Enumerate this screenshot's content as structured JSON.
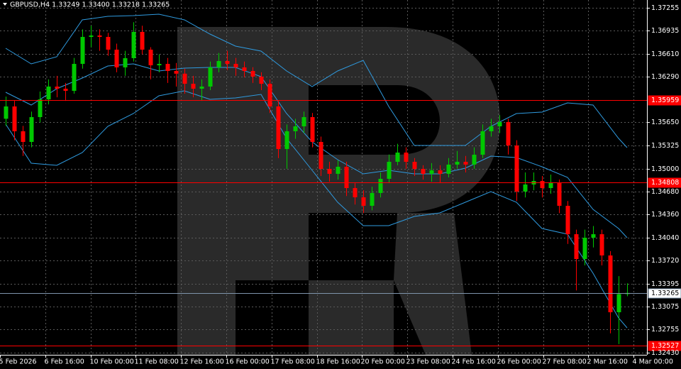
{
  "chart_data": {
    "type": "candlestick",
    "title": "GBPUSD,H4  1.33249 1.33400 1.33218 1.33265",
    "ylim": [
      1.324,
      1.3736
    ],
    "yticks": [
      1.37255,
      1.36935,
      {
        "value": 1.3661,
        "label": "1.36610"
      },
      {
        "value": 1.3629,
        "label": "1.36290"
      },
      {
        "value": 1.3565,
        "label": "1.35650"
      },
      1.35325,
      {
        "value": 1.35,
        "label": "1.35000"
      },
      {
        "value": 1.3468,
        "label": "1.34680"
      },
      {
        "value": 1.3436,
        "label": "1.34360"
      },
      {
        "value": 1.3404,
        "label": "1.34040"
      },
      {
        "value": 1.3372,
        "label": "1.33720"
      },
      1.33395,
      1.33075,
      1.32755,
      {
        "value": 1.3243,
        "label": "1.32430"
      }
    ],
    "x_labels": [
      "5 Feb 2026",
      "6 Feb 16:00",
      "10 Feb 00:00",
      "11 Feb 08:00",
      "12 Feb 16:00",
      "16 Feb 00:00",
      "17 Feb 08:00",
      "18 Feb 16:00",
      "20 Feb 00:00",
      "23 Feb 08:00",
      "24 Feb 16:00",
      "26 Feb 00:00",
      "27 Feb 08:00",
      "2 Mar 16:00",
      "4 Mar 00:00"
    ],
    "grid": true,
    "up_color": "#00c800",
    "down_color": "#ff0000",
    "ohlc": [
      [
        1.357,
        1.3601,
        1.356,
        1.35872
      ],
      [
        1.35872,
        1.3595,
        1.354,
        1.35525
      ],
      [
        1.35525,
        1.356,
        1.3518,
        1.35376
      ],
      [
        1.35376,
        1.358,
        1.353,
        1.35723
      ],
      [
        1.35723,
        1.3608,
        1.3565,
        1.35971
      ],
      [
        1.35971,
        1.3625,
        1.359,
        1.3615
      ],
      [
        1.3615,
        1.363,
        1.36,
        1.3612
      ],
      [
        1.3612,
        1.362,
        1.3595,
        1.3609
      ],
      [
        1.3609,
        1.3655,
        1.3605,
        1.36467
      ],
      [
        1.36467,
        1.3695,
        1.364,
        1.36844
      ],
      [
        1.36844,
        1.37,
        1.367,
        1.36864
      ],
      [
        1.36864,
        1.3695,
        1.3665,
        1.36844
      ],
      [
        1.36844,
        1.369,
        1.3658,
        1.36666
      ],
      [
        1.36666,
        1.3675,
        1.3635,
        1.36418
      ],
      [
        1.36418,
        1.3665,
        1.363,
        1.36547
      ],
      [
        1.36547,
        1.3705,
        1.365,
        1.36914
      ],
      [
        1.36914,
        1.37,
        1.366,
        1.36666
      ],
      [
        1.36666,
        1.367,
        1.3625,
        1.36447
      ],
      [
        1.36447,
        1.366,
        1.3635,
        1.36467
      ],
      [
        1.36467,
        1.3655,
        1.362,
        1.36368
      ],
      [
        1.36368,
        1.3648,
        1.3615,
        1.3633
      ],
      [
        1.3633,
        1.364,
        1.3605,
        1.36189
      ],
      [
        1.36189,
        1.363,
        1.36,
        1.3612
      ],
      [
        1.3612,
        1.3625,
        1.3595,
        1.3615
      ],
      [
        1.3615,
        1.365,
        1.361,
        1.36418
      ],
      [
        1.36418,
        1.3662,
        1.3635,
        1.36507
      ],
      [
        1.36507,
        1.3665,
        1.3638,
        1.36467
      ],
      [
        1.36467,
        1.3655,
        1.363,
        1.36418
      ],
      [
        1.36418,
        1.365,
        1.3628,
        1.36368
      ],
      [
        1.36368,
        1.3642,
        1.362,
        1.36289
      ],
      [
        1.36289,
        1.3635,
        1.361,
        1.36189
      ],
      [
        1.36189,
        1.3625,
        1.3578,
        1.35872
      ],
      [
        1.35872,
        1.3595,
        1.3515,
        1.35277
      ],
      [
        1.35277,
        1.3562,
        1.35,
        1.35525
      ],
      [
        1.35525,
        1.357,
        1.3542,
        1.35594
      ],
      [
        1.35594,
        1.358,
        1.355,
        1.35723
      ],
      [
        1.35723,
        1.3578,
        1.353,
        1.35376
      ],
      [
        1.35376,
        1.3545,
        1.349,
        1.34999
      ],
      [
        1.34999,
        1.351,
        1.3482,
        1.3493
      ],
      [
        1.3493,
        1.3512,
        1.3485,
        1.35029
      ],
      [
        1.35029,
        1.351,
        1.3462,
        1.34731
      ],
      [
        1.34731,
        1.348,
        1.345,
        1.34602
      ],
      [
        1.34602,
        1.347,
        1.3438,
        1.34483
      ],
      [
        1.34483,
        1.3475,
        1.3442,
        1.34662
      ],
      [
        1.34662,
        1.3495,
        1.346,
        1.3486
      ],
      [
        1.3486,
        1.352,
        1.348,
        1.35098
      ],
      [
        1.35098,
        1.3535,
        1.3505,
        1.35227
      ],
      [
        1.35227,
        1.353,
        1.35,
        1.35098
      ],
      [
        1.35098,
        1.3515,
        1.349,
        1.34999
      ],
      [
        1.34999,
        1.3505,
        1.3485,
        1.3493
      ],
      [
        1.3493,
        1.3508,
        1.3482,
        1.34979
      ],
      [
        1.34979,
        1.3505,
        1.348,
        1.3493
      ],
      [
        1.3493,
        1.3515,
        1.3488,
        1.35059
      ],
      [
        1.35059,
        1.3525,
        1.35,
        1.35098
      ],
      [
        1.35098,
        1.3518,
        1.3495,
        1.35059
      ],
      [
        1.35059,
        1.353,
        1.35,
        1.35197
      ],
      [
        1.35197,
        1.3562,
        1.3515,
        1.35525
      ],
      [
        1.35525,
        1.357,
        1.3545,
        1.35594
      ],
      [
        1.35594,
        1.3575,
        1.355,
        1.35654
      ],
      [
        1.35654,
        1.357,
        1.352,
        1.35326
      ],
      [
        1.35326,
        1.354,
        1.3455,
        1.34682
      ],
      [
        1.34682,
        1.3495,
        1.346,
        1.34781
      ],
      [
        1.34781,
        1.3495,
        1.347,
        1.3483
      ],
      [
        1.3483,
        1.349,
        1.346,
        1.34731
      ],
      [
        1.34731,
        1.3492,
        1.3465,
        1.34801
      ],
      [
        1.34801,
        1.3485,
        1.3438,
        1.34483
      ],
      [
        1.34483,
        1.3455,
        1.3395,
        1.34086
      ],
      [
        1.34086,
        1.3415,
        1.333,
        1.33739
      ],
      [
        1.33739,
        1.3415,
        1.3365,
        1.34037
      ],
      [
        1.34037,
        1.342,
        1.339,
        1.34086
      ],
      [
        1.34086,
        1.3415,
        1.3365,
        1.33789
      ],
      [
        1.33789,
        1.3385,
        1.327,
        1.32995
      ],
      [
        1.32995,
        1.335,
        1.3255,
        1.33249
      ],
      [
        1.33249,
        1.334,
        1.33218,
        1.33265
      ]
    ],
    "bands": {
      "color": "#2f9be0",
      "index": [
        0,
        3,
        6,
        9,
        12,
        15,
        18,
        21,
        24,
        27,
        30,
        33,
        36,
        39,
        42,
        45,
        48,
        51,
        54,
        57,
        60,
        63,
        66,
        69,
        72,
        73
      ],
      "series": [
        {
          "values": [
            1.36685,
            1.36467,
            1.36566,
            1.37082,
            1.37132,
            1.37142,
            1.37162,
            1.37082,
            1.36884,
            1.36715,
            1.36646,
            1.36368,
            1.3615,
            1.36368,
            1.36517,
            1.35872,
            1.35326,
            1.35326,
            1.35326,
            1.35594,
            1.35773,
            1.35793,
            1.35922,
            1.35892,
            1.35426,
            1.35297
          ]
        },
        {
          "values": [
            1.3607,
            1.35892,
            1.3612,
            1.36269,
            1.36437,
            1.36467,
            1.36368,
            1.36408,
            1.36418,
            1.36418,
            1.36289,
            1.35773,
            1.35376,
            1.35128,
            1.3493,
            1.34979,
            1.3493,
            1.3493,
            1.35009,
            1.35178,
            1.35158,
            1.35029,
            1.3488,
            1.34434,
            1.34166,
            1.34037
          ]
        },
        {
          "values": [
            1.35624,
            1.35078,
            1.35049,
            1.35227,
            1.35594,
            1.35773,
            1.36021,
            1.3609,
            1.35971,
            1.35991,
            1.36041,
            1.35426,
            1.34979,
            1.34533,
            1.34205,
            1.34205,
            1.34334,
            1.34384,
            1.34533,
            1.34682,
            1.34533,
            1.34166,
            1.34086,
            1.33541,
            1.32916,
            1.32777
          ]
        }
      ]
    },
    "levels": [
      {
        "value": 1.35959,
        "color": "#ff0000",
        "label_fill": "#ff0000"
      },
      {
        "value": 1.34808,
        "color": "#ff0000",
        "label_fill": "#ff0000"
      },
      {
        "value": 1.32527,
        "color": "#ff0000",
        "label_fill": "#ff0000"
      },
      {
        "value": 1.33265,
        "color": "#7e94ab",
        "label_fill": "#ffffff"
      }
    ]
  }
}
